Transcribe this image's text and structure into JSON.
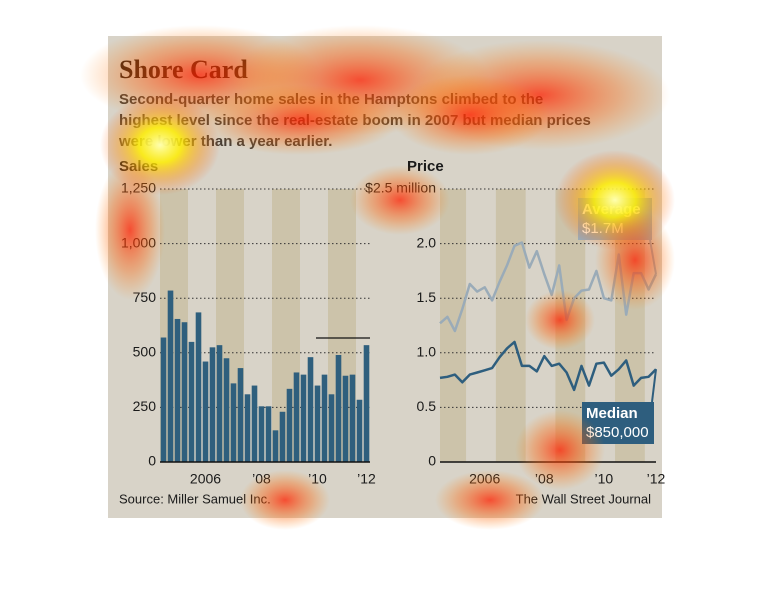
{
  "title": "Shore Card",
  "subtitle": [
    "Second-quarter home sales in the Hamptons climbed to the",
    "highest level since the real-estate boom in 2007 but median prices",
    "were lower than a year earlier."
  ],
  "source": "Source: Miller Samuel Inc.",
  "credit": "The Wall Street Journal",
  "chart_data": [
    {
      "type": "bar",
      "y_label": "Sales",
      "categories": [
        null,
        null,
        null,
        null,
        null,
        null,
        "2006",
        null,
        null,
        null,
        null,
        null,
        null,
        null,
        "’08",
        null,
        null,
        null,
        null,
        null,
        null,
        null,
        "’10",
        null,
        null,
        null,
        null,
        null,
        null,
        "’12"
      ],
      "values": [
        570,
        785,
        655,
        640,
        550,
        685,
        460,
        525,
        535,
        475,
        360,
        430,
        310,
        350,
        255,
        255,
        145,
        230,
        335,
        410,
        400,
        480,
        350,
        400,
        310,
        490,
        395,
        400,
        285,
        535
      ],
      "color": "#2f5f7d",
      "ylim": [
        0,
        1250
      ],
      "yticks": [
        0,
        250,
        500,
        750,
        {
          "value": 1000,
          "label": "1,000"
        },
        {
          "value": 1250,
          "label": "1,250"
        }
      ],
      "grid": true
    },
    {
      "type": "line",
      "y_label": "Price",
      "categories": [
        null,
        null,
        null,
        null,
        null,
        null,
        "2006",
        null,
        null,
        null,
        null,
        null,
        null,
        null,
        "’08",
        null,
        null,
        null,
        null,
        null,
        null,
        null,
        "’10",
        null,
        null,
        null,
        null,
        null,
        null,
        "’12"
      ],
      "series": [
        {
          "name": "Average",
          "color": "#9aabb8",
          "values": [
            1.27,
            1.33,
            1.2,
            1.4,
            1.63,
            1.56,
            1.6,
            1.48,
            1.65,
            1.8,
            1.98,
            2.01,
            1.78,
            1.93,
            1.72,
            1.53,
            1.8,
            1.3,
            1.5,
            1.57,
            1.58,
            1.75,
            1.5,
            1.48,
            1.9,
            1.35,
            1.73,
            1.73,
            1.58,
            1.72
          ]
        },
        {
          "name": "Median",
          "color": "#2e5e7e",
          "values": [
            0.77,
            0.78,
            0.8,
            0.73,
            0.8,
            0.82,
            0.84,
            0.86,
            0.96,
            1.04,
            1.1,
            0.88,
            0.88,
            0.83,
            0.97,
            0.88,
            0.9,
            0.82,
            0.66,
            0.88,
            0.7,
            0.9,
            0.91,
            0.79,
            0.85,
            0.93,
            0.7,
            0.77,
            0.78,
            0.85
          ]
        }
      ],
      "annotations": [
        "$1.7M",
        "$850,000"
      ],
      "ylim": [
        0,
        2.5
      ],
      "yticks": [
        0,
        {
          "value": 0.5,
          "label": "0.5"
        },
        {
          "value": 1,
          "label": "1.0"
        },
        {
          "value": 1.5,
          "label": "1.5"
        },
        {
          "value": 2,
          "label": "2.0"
        },
        {
          "value": 2.5,
          "label": "$2.5 million"
        }
      ],
      "grid": true
    }
  ]
}
